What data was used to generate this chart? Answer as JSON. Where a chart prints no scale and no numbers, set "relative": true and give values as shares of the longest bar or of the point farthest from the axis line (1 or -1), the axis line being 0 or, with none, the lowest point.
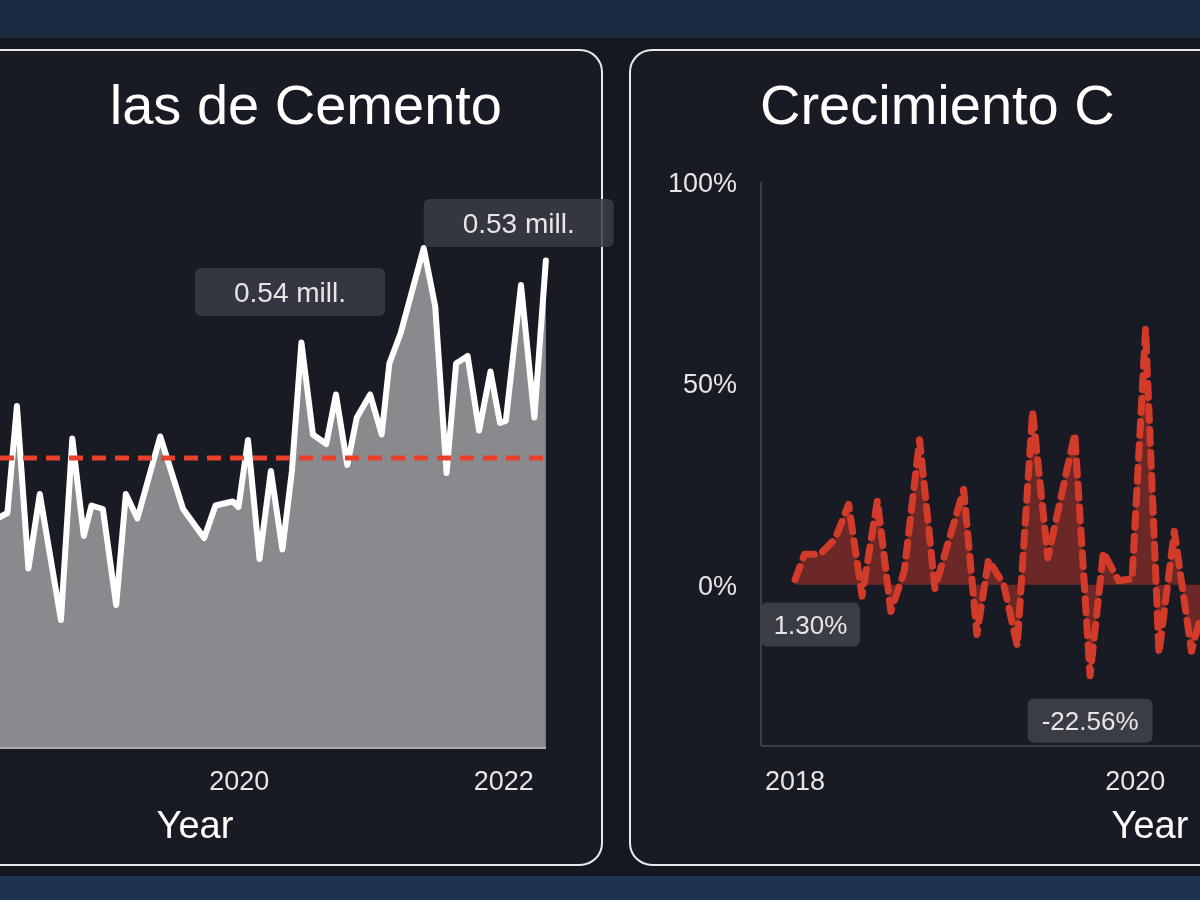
{
  "chart_data": [
    {
      "type": "area",
      "title": "las de Cemento",
      "xlabel": "Year",
      "relative": true,
      "tick_labels": "x",
      "x": [
        2018.19,
        2018.246,
        2018.318,
        2018.405,
        2018.491,
        2018.651,
        2018.737,
        2018.824,
        2018.882,
        2018.968,
        2019.069,
        2019.142,
        2019.229,
        2019.402,
        2019.575,
        2019.734,
        2019.82,
        2019.95,
        2019.994,
        2020.066,
        2020.153,
        2020.239,
        2020.326,
        2020.398,
        2020.47,
        2020.557,
        2020.658,
        2020.731,
        2020.817,
        2020.889,
        2020.99,
        2021.077,
        2021.135,
        2021.221,
        2021.395,
        2021.482,
        2021.568,
        2021.64,
        2021.727,
        2021.814,
        2021.9,
        2021.972,
        2022.016,
        2022.131,
        2022.232,
        2022.319
      ],
      "series": [
        {
          "color": "#8a898e",
          "values": [
            0.462,
            0.47,
            0.684,
            0.359,
            0.508,
            0.256,
            0.619,
            0.424,
            0.485,
            0.478,
            0.286,
            0.508,
            0.459,
            0.623,
            0.478,
            0.42,
            0.485,
            0.493,
            0.482,
            0.616,
            0.378,
            0.554,
            0.397,
            0.554,
            0.811,
            0.627,
            0.608,
            0.707,
            0.566,
            0.661,
            0.707,
            0.627,
            0.769,
            0.83,
            1,
            0.883,
            0.55,
            0.769,
            0.784,
            0.635,
            0.753,
            0.65,
            0.654,
            0.926,
            0.661,
            0.975
          ]
        }
      ],
      "xlim": [
        2018.19,
        2022.32
      ],
      "xticks": [
        2020,
        2022
      ],
      "ref_lines": [
        {
          "axis": "y",
          "value": 0.58,
          "color": "#e8402a",
          "line_style": "dashed"
        }
      ],
      "annotations": [
        {
          "text": "0.53 mill.",
          "x": 2021.395,
          "y": 1
        },
        "0.54 mill."
      ]
    },
    {
      "type": "area",
      "title": "Crecimiento C",
      "xlabel": "Year",
      "x": [
        2018.0,
        2018.056,
        2018.146,
        2018.236,
        2018.315,
        2018.394,
        2018.484,
        2018.563,
        2018.642,
        2018.732,
        2018.822,
        2018.991,
        2019.069,
        2019.137,
        2019.227,
        2019.306,
        2019.396,
        2019.486,
        2019.644,
        2019.734,
        2019.812,
        2019.902,
        2019.981,
        2020.06,
        2020.139,
        2020.229,
        2020.33,
        2020.38
      ],
      "series": [
        {
          "color": "#d23a2a",
          "line_style": "dashed",
          "values": [
            1.3,
            7.6,
            7.6,
            11.4,
            20,
            -2.8,
            20.9,
            -6.6,
            3.4,
            36,
            -0.9,
            23.7,
            -12.3,
            6.2,
            0,
            -15.1,
            43.1,
            6.7,
            37.5,
            -22.56,
            8.1,
            1,
            1.5,
            63.5,
            -17,
            13.3,
            -16.5,
            -8.4
          ],
          "value_labels": [
            "1.30%",
            null,
            null,
            null,
            null,
            null,
            null,
            null,
            null,
            null,
            null,
            null,
            null,
            null,
            null,
            null,
            null,
            null,
            null,
            "-22.56%",
            null,
            null,
            null,
            null,
            null,
            null,
            null,
            null
          ]
        }
      ],
      "xlim": [
        2017.8,
        2020.38
      ],
      "ylim": [
        -40,
        100
      ],
      "xticks": [
        2018,
        2020
      ],
      "yticks": [
        {
          "value": 0,
          "label": "0%"
        },
        {
          "value": 50,
          "label": "50%"
        },
        {
          "value": 100,
          "label": "100%"
        }
      ]
    }
  ]
}
